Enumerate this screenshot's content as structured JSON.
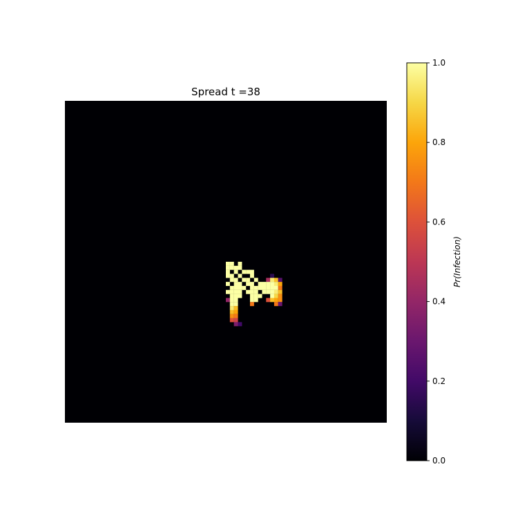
{
  "chart_data": {
    "type": "heatmap",
    "title": "Spread t =38",
    "grid_size": [
      80,
      80
    ],
    "value_range": [
      0,
      1
    ],
    "colormap": "inferno",
    "colorbar": {
      "label": "Pr(Infection)",
      "ticks": [
        0.0,
        0.2,
        0.4,
        0.6,
        0.8,
        1.0
      ],
      "tick_labels": [
        "0.0",
        "0.2",
        "0.4",
        "0.6",
        "0.8",
        "1.0"
      ]
    },
    "axes_visible": false,
    "background_value": 0.0,
    "cells": [
      {
        "row": 40,
        "col": 40,
        "v": 1.0
      },
      {
        "row": 40,
        "col": 41,
        "v": 1.0
      },
      {
        "row": 40,
        "col": 43,
        "v": 1.0
      },
      {
        "row": 41,
        "col": 40,
        "v": 1.0
      },
      {
        "row": 41,
        "col": 41,
        "v": 1.0
      },
      {
        "row": 41,
        "col": 42,
        "v": 1.0
      },
      {
        "row": 41,
        "col": 43,
        "v": 1.0
      },
      {
        "row": 42,
        "col": 40,
        "v": 1.0
      },
      {
        "row": 42,
        "col": 42,
        "v": 1.0
      },
      {
        "row": 42,
        "col": 44,
        "v": 1.0
      },
      {
        "row": 42,
        "col": 45,
        "v": 1.0
      },
      {
        "row": 42,
        "col": 46,
        "v": 1.0
      },
      {
        "row": 43,
        "col": 40,
        "v": 1.0
      },
      {
        "row": 43,
        "col": 41,
        "v": 1.0
      },
      {
        "row": 43,
        "col": 43,
        "v": 1.0
      },
      {
        "row": 43,
        "col": 46,
        "v": 1.0
      },
      {
        "row": 43,
        "col": 51,
        "v": 0.15
      },
      {
        "row": 44,
        "col": 41,
        "v": 1.0
      },
      {
        "row": 44,
        "col": 42,
        "v": 1.0
      },
      {
        "row": 44,
        "col": 44,
        "v": 1.0
      },
      {
        "row": 44,
        "col": 45,
        "v": 1.0
      },
      {
        "row": 44,
        "col": 47,
        "v": 1.0
      },
      {
        "row": 44,
        "col": 50,
        "v": 0.45
      },
      {
        "row": 44,
        "col": 51,
        "v": 0.95
      },
      {
        "row": 44,
        "col": 52,
        "v": 0.85
      },
      {
        "row": 44,
        "col": 53,
        "v": 0.25
      },
      {
        "row": 45,
        "col": 40,
        "v": 1.0
      },
      {
        "row": 45,
        "col": 42,
        "v": 1.0
      },
      {
        "row": 45,
        "col": 43,
        "v": 1.0
      },
      {
        "row": 45,
        "col": 45,
        "v": 1.0
      },
      {
        "row": 45,
        "col": 46,
        "v": 1.0
      },
      {
        "row": 45,
        "col": 48,
        "v": 1.0
      },
      {
        "row": 45,
        "col": 49,
        "v": 1.0
      },
      {
        "row": 45,
        "col": 50,
        "v": 1.0
      },
      {
        "row": 45,
        "col": 51,
        "v": 1.0
      },
      {
        "row": 45,
        "col": 52,
        "v": 0.95
      },
      {
        "row": 45,
        "col": 53,
        "v": 0.8
      },
      {
        "row": 46,
        "col": 41,
        "v": 1.0
      },
      {
        "row": 46,
        "col": 42,
        "v": 1.0
      },
      {
        "row": 46,
        "col": 43,
        "v": 1.0
      },
      {
        "row": 46,
        "col": 44,
        "v": 1.0
      },
      {
        "row": 46,
        "col": 46,
        "v": 1.0
      },
      {
        "row": 46,
        "col": 47,
        "v": 1.0
      },
      {
        "row": 46,
        "col": 48,
        "v": 1.0
      },
      {
        "row": 46,
        "col": 49,
        "v": 1.0
      },
      {
        "row": 46,
        "col": 50,
        "v": 1.0
      },
      {
        "row": 46,
        "col": 51,
        "v": 1.0
      },
      {
        "row": 46,
        "col": 52,
        "v": 1.0
      },
      {
        "row": 46,
        "col": 53,
        "v": 0.7
      },
      {
        "row": 47,
        "col": 40,
        "v": 1.0
      },
      {
        "row": 47,
        "col": 41,
        "v": 1.0
      },
      {
        "row": 47,
        "col": 42,
        "v": 1.0
      },
      {
        "row": 47,
        "col": 43,
        "v": 1.0
      },
      {
        "row": 47,
        "col": 45,
        "v": 1.0
      },
      {
        "row": 47,
        "col": 46,
        "v": 1.0
      },
      {
        "row": 47,
        "col": 47,
        "v": 1.0
      },
      {
        "row": 47,
        "col": 49,
        "v": 1.0
      },
      {
        "row": 47,
        "col": 50,
        "v": 1.0
      },
      {
        "row": 47,
        "col": 51,
        "v": 1.0
      },
      {
        "row": 47,
        "col": 52,
        "v": 0.95
      },
      {
        "row": 47,
        "col": 53,
        "v": 0.85
      },
      {
        "row": 48,
        "col": 41,
        "v": 1.0
      },
      {
        "row": 48,
        "col": 42,
        "v": 1.0
      },
      {
        "row": 48,
        "col": 43,
        "v": 1.0
      },
      {
        "row": 48,
        "col": 46,
        "v": 1.0
      },
      {
        "row": 48,
        "col": 47,
        "v": 1.0
      },
      {
        "row": 48,
        "col": 48,
        "v": 1.0
      },
      {
        "row": 48,
        "col": 51,
        "v": 1.0
      },
      {
        "row": 48,
        "col": 52,
        "v": 0.9
      },
      {
        "row": 48,
        "col": 53,
        "v": 0.75
      },
      {
        "row": 49,
        "col": 40,
        "v": 0.4
      },
      {
        "row": 49,
        "col": 41,
        "v": 1.0
      },
      {
        "row": 49,
        "col": 42,
        "v": 1.0
      },
      {
        "row": 49,
        "col": 46,
        "v": 1.0
      },
      {
        "row": 49,
        "col": 47,
        "v": 1.0
      },
      {
        "row": 49,
        "col": 50,
        "v": 0.6
      },
      {
        "row": 49,
        "col": 51,
        "v": 0.85
      },
      {
        "row": 49,
        "col": 52,
        "v": 0.8
      },
      {
        "row": 49,
        "col": 53,
        "v": 0.75
      },
      {
        "row": 50,
        "col": 41,
        "v": 1.0
      },
      {
        "row": 50,
        "col": 42,
        "v": 1.0
      },
      {
        "row": 50,
        "col": 46,
        "v": 0.7
      },
      {
        "row": 50,
        "col": 52,
        "v": 0.7
      },
      {
        "row": 50,
        "col": 53,
        "v": 0.3
      },
      {
        "row": 51,
        "col": 41,
        "v": 0.95
      },
      {
        "row": 51,
        "col": 42,
        "v": 0.85
      },
      {
        "row": 52,
        "col": 41,
        "v": 0.85
      },
      {
        "row": 52,
        "col": 42,
        "v": 0.8
      },
      {
        "row": 53,
        "col": 41,
        "v": 0.75
      },
      {
        "row": 53,
        "col": 42,
        "v": 0.7
      },
      {
        "row": 54,
        "col": 41,
        "v": 0.6
      },
      {
        "row": 54,
        "col": 42,
        "v": 0.55
      },
      {
        "row": 55,
        "col": 42,
        "v": 0.35
      },
      {
        "row": 55,
        "col": 43,
        "v": 0.2
      }
    ]
  }
}
